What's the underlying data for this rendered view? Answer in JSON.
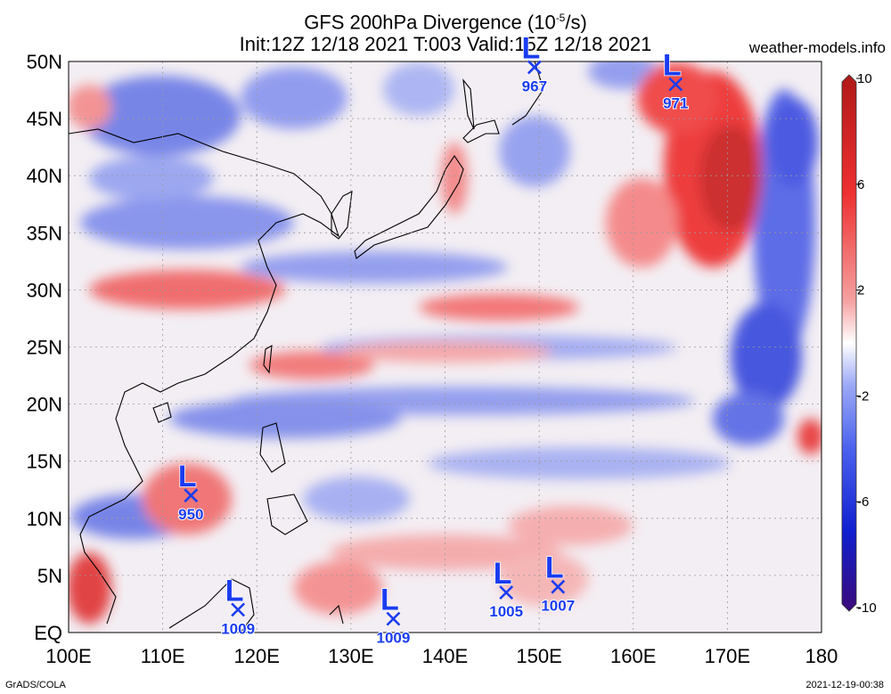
{
  "header": {
    "title_line1": "GFS 200hPa Divergence (10",
    "title_exp": "-5",
    "title_line1_end": "/s)",
    "title_line2": "Init:12Z 12/18 2021 T:003 Valid:15Z 12/18 2021",
    "site": "weather-models.info"
  },
  "footer": {
    "left": "GrADS/COLA",
    "right": "2021-12-19-00:38"
  },
  "map": {
    "lon_range": [
      100,
      180
    ],
    "lat_range": [
      0,
      50
    ],
    "lat_labels": [
      "50N",
      "45N",
      "40N",
      "35N",
      "30N",
      "25N",
      "20N",
      "15N",
      "10N",
      "5N",
      "EQ"
    ],
    "lon_labels": [
      "100E",
      "110E",
      "120E",
      "130E",
      "140E",
      "150E",
      "160E",
      "170E",
      "180"
    ],
    "grid": true
  },
  "colorbar": {
    "range": [
      -10,
      10
    ],
    "labels": [
      "10",
      "6",
      "2",
      "-2",
      "-6",
      "-10"
    ],
    "stops": [
      "#3b0a7a",
      "#1020d0",
      "#4a60ee",
      "#9aa8f5",
      "#ffffff",
      "#f5a0a0",
      "#ee3030",
      "#b01818"
    ]
  },
  "lows": [
    {
      "label": "L",
      "pressure": "950",
      "lon": 113.0,
      "lat": 12.0
    },
    {
      "label": "L",
      "pressure": "1009",
      "lon": 118.0,
      "lat": 2.0
    },
    {
      "label": "L",
      "pressure": "1009",
      "lon": 134.5,
      "lat": 1.2
    },
    {
      "label": "L",
      "pressure": "1005",
      "lon": 146.5,
      "lat": 3.5
    },
    {
      "label": "L",
      "pressure": "1007",
      "lon": 152.0,
      "lat": 4.0
    },
    {
      "label": "L",
      "pressure": "967",
      "lon": 149.5,
      "lat": 49.5
    },
    {
      "label": "L",
      "pressure": "971",
      "lon": 164.5,
      "lat": 48.0
    }
  ]
}
